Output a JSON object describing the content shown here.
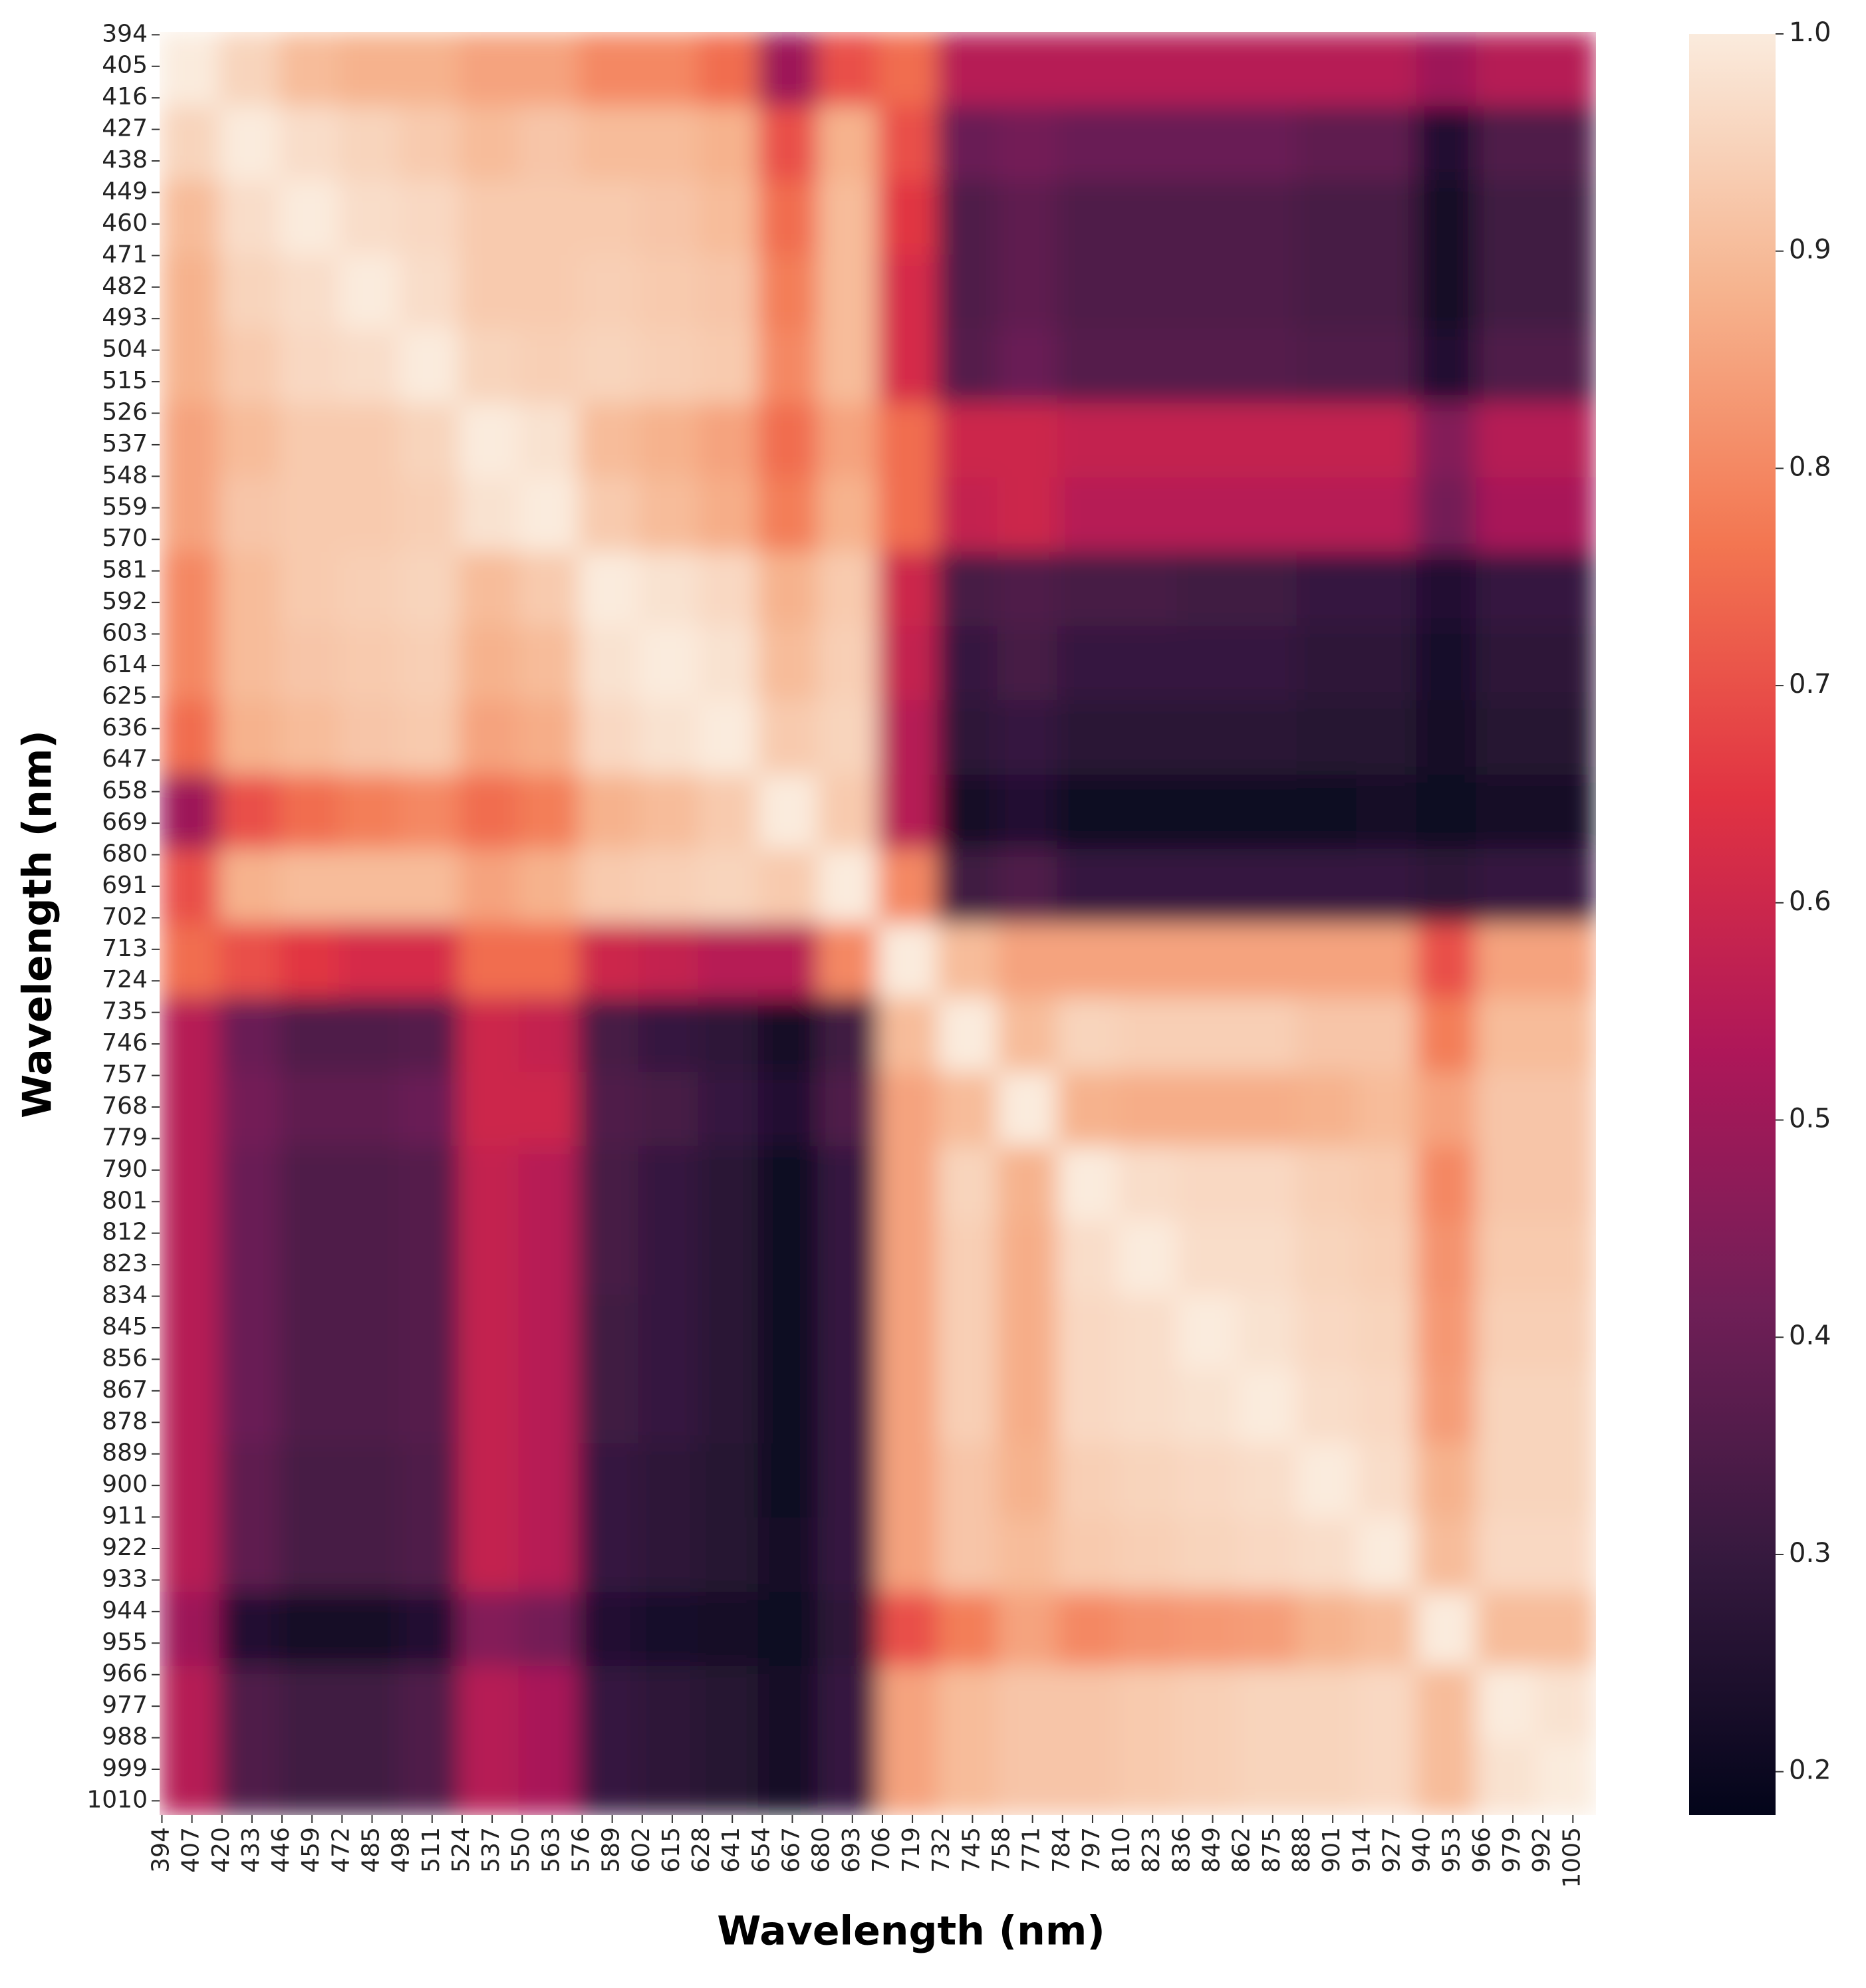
{
  "chart_data": {
    "type": "heatmap",
    "x_label": "Wavelength (nm)",
    "y_label": "Wavelength (nm)",
    "xlim": [
      393,
      1015
    ],
    "ylim": [
      1015,
      393
    ],
    "xticks": [
      394,
      407,
      420,
      433,
      446,
      459,
      472,
      485,
      498,
      511,
      524,
      537,
      550,
      563,
      576,
      589,
      602,
      615,
      628,
      641,
      654,
      667,
      680,
      693,
      706,
      719,
      732,
      745,
      758,
      771,
      784,
      797,
      810,
      823,
      836,
      849,
      862,
      875,
      888,
      901,
      914,
      927,
      940,
      953,
      966,
      979,
      992,
      1005
    ],
    "yticks": [
      394,
      405,
      416,
      427,
      438,
      449,
      460,
      471,
      482,
      493,
      504,
      515,
      526,
      537,
      548,
      559,
      570,
      581,
      592,
      603,
      614,
      625,
      636,
      647,
      658,
      669,
      680,
      691,
      702,
      713,
      724,
      735,
      746,
      757,
      768,
      779,
      790,
      801,
      812,
      823,
      834,
      845,
      856,
      867,
      878,
      889,
      900,
      911,
      922,
      933,
      944,
      955,
      966,
      977,
      988,
      999,
      1010
    ],
    "clim": [
      0.18,
      1.0
    ],
    "cticks": [
      0.2,
      0.3,
      0.4,
      0.5,
      0.6,
      0.7,
      0.8,
      0.9,
      {
        "value": 1,
        "label": "1.0"
      }
    ],
    "colormap": [
      "#03051a",
      "#35193e",
      "#701f57",
      "#ae1759",
      "#e13342",
      "#f37651",
      "#f6b48f",
      "#faebdd"
    ],
    "z": [
      [
        1.0,
        0.95,
        0.9,
        0.88,
        0.88,
        0.85,
        0.85,
        0.8,
        0.8,
        0.75,
        0.5,
        0.7,
        0.75,
        0.55,
        0.55,
        0.55,
        0.55,
        0.55,
        0.55,
        0.55,
        0.55,
        0.5,
        0.55,
        0.55
      ],
      [
        0.95,
        1.0,
        0.97,
        0.95,
        0.93,
        0.9,
        0.92,
        0.9,
        0.9,
        0.88,
        0.7,
        0.88,
        0.7,
        0.4,
        0.42,
        0.4,
        0.4,
        0.4,
        0.4,
        0.38,
        0.38,
        0.25,
        0.35,
        0.35
      ],
      [
        0.9,
        0.97,
        1.0,
        0.97,
        0.96,
        0.93,
        0.93,
        0.93,
        0.92,
        0.9,
        0.75,
        0.9,
        0.65,
        0.35,
        0.38,
        0.35,
        0.35,
        0.35,
        0.35,
        0.33,
        0.33,
        0.22,
        0.32,
        0.32
      ],
      [
        0.88,
        0.95,
        0.97,
        1.0,
        0.97,
        0.93,
        0.93,
        0.94,
        0.93,
        0.92,
        0.78,
        0.9,
        0.62,
        0.35,
        0.38,
        0.35,
        0.35,
        0.35,
        0.35,
        0.33,
        0.33,
        0.22,
        0.32,
        0.32
      ],
      [
        0.88,
        0.93,
        0.96,
        0.97,
        1.0,
        0.95,
        0.94,
        0.95,
        0.94,
        0.93,
        0.8,
        0.9,
        0.62,
        0.36,
        0.4,
        0.36,
        0.36,
        0.36,
        0.36,
        0.35,
        0.35,
        0.25,
        0.35,
        0.35
      ],
      [
        0.85,
        0.9,
        0.93,
        0.93,
        0.95,
        1.0,
        0.98,
        0.9,
        0.88,
        0.85,
        0.75,
        0.85,
        0.75,
        0.6,
        0.6,
        0.58,
        0.58,
        0.58,
        0.58,
        0.58,
        0.58,
        0.45,
        0.55,
        0.55
      ],
      [
        0.85,
        0.92,
        0.93,
        0.93,
        0.94,
        0.98,
        1.0,
        0.93,
        0.9,
        0.87,
        0.78,
        0.88,
        0.75,
        0.58,
        0.6,
        0.55,
        0.55,
        0.55,
        0.55,
        0.55,
        0.55,
        0.42,
        0.52,
        0.52
      ],
      [
        0.8,
        0.9,
        0.93,
        0.94,
        0.95,
        0.9,
        0.93,
        1.0,
        0.98,
        0.96,
        0.88,
        0.93,
        0.6,
        0.33,
        0.35,
        0.33,
        0.33,
        0.32,
        0.32,
        0.3,
        0.3,
        0.25,
        0.3,
        0.3
      ],
      [
        0.8,
        0.9,
        0.92,
        0.93,
        0.94,
        0.88,
        0.9,
        0.98,
        1.0,
        0.98,
        0.9,
        0.94,
        0.58,
        0.3,
        0.33,
        0.3,
        0.3,
        0.3,
        0.3,
        0.28,
        0.28,
        0.23,
        0.28,
        0.28
      ],
      [
        0.75,
        0.88,
        0.9,
        0.92,
        0.93,
        0.85,
        0.87,
        0.96,
        0.98,
        1.0,
        0.93,
        0.95,
        0.55,
        0.28,
        0.3,
        0.27,
        0.27,
        0.27,
        0.27,
        0.26,
        0.26,
        0.22,
        0.26,
        0.26
      ],
      [
        0.5,
        0.7,
        0.75,
        0.78,
        0.8,
        0.75,
        0.78,
        0.88,
        0.9,
        0.93,
        1.0,
        0.93,
        0.55,
        0.22,
        0.25,
        0.2,
        0.2,
        0.2,
        0.2,
        0.2,
        0.22,
        0.2,
        0.22,
        0.22
      ],
      [
        0.7,
        0.88,
        0.9,
        0.9,
        0.9,
        0.85,
        0.88,
        0.93,
        0.94,
        0.95,
        0.93,
        1.0,
        0.8,
        0.32,
        0.35,
        0.3,
        0.3,
        0.3,
        0.3,
        0.3,
        0.3,
        0.28,
        0.3,
        0.3
      ],
      [
        0.75,
        0.7,
        0.65,
        0.62,
        0.62,
        0.75,
        0.75,
        0.6,
        0.58,
        0.55,
        0.55,
        0.8,
        1.0,
        0.9,
        0.85,
        0.85,
        0.85,
        0.85,
        0.85,
        0.85,
        0.85,
        0.7,
        0.85,
        0.85
      ],
      [
        0.55,
        0.4,
        0.35,
        0.35,
        0.36,
        0.6,
        0.58,
        0.33,
        0.3,
        0.28,
        0.22,
        0.32,
        0.9,
        1.0,
        0.9,
        0.95,
        0.94,
        0.94,
        0.94,
        0.92,
        0.92,
        0.78,
        0.9,
        0.9
      ],
      [
        0.55,
        0.42,
        0.38,
        0.38,
        0.4,
        0.6,
        0.6,
        0.35,
        0.33,
        0.3,
        0.25,
        0.35,
        0.85,
        0.9,
        1.0,
        0.88,
        0.87,
        0.87,
        0.87,
        0.88,
        0.9,
        0.85,
        0.92,
        0.92
      ],
      [
        0.55,
        0.4,
        0.35,
        0.35,
        0.36,
        0.58,
        0.55,
        0.33,
        0.3,
        0.27,
        0.2,
        0.3,
        0.85,
        0.95,
        0.88,
        1.0,
        0.97,
        0.96,
        0.96,
        0.94,
        0.93,
        0.8,
        0.92,
        0.92
      ],
      [
        0.55,
        0.4,
        0.35,
        0.35,
        0.36,
        0.58,
        0.55,
        0.33,
        0.3,
        0.27,
        0.2,
        0.3,
        0.85,
        0.94,
        0.87,
        0.97,
        1.0,
        0.97,
        0.97,
        0.95,
        0.94,
        0.82,
        0.93,
        0.93
      ],
      [
        0.55,
        0.4,
        0.35,
        0.35,
        0.36,
        0.58,
        0.55,
        0.32,
        0.3,
        0.27,
        0.2,
        0.3,
        0.85,
        0.94,
        0.87,
        0.96,
        0.97,
        1.0,
        0.98,
        0.96,
        0.95,
        0.83,
        0.94,
        0.94
      ],
      [
        0.55,
        0.4,
        0.35,
        0.35,
        0.36,
        0.58,
        0.55,
        0.32,
        0.3,
        0.27,
        0.2,
        0.3,
        0.85,
        0.94,
        0.87,
        0.96,
        0.97,
        0.98,
        1.0,
        0.97,
        0.96,
        0.84,
        0.95,
        0.95
      ],
      [
        0.55,
        0.38,
        0.33,
        0.33,
        0.35,
        0.58,
        0.55,
        0.3,
        0.28,
        0.26,
        0.2,
        0.3,
        0.85,
        0.92,
        0.88,
        0.94,
        0.95,
        0.96,
        0.97,
        1.0,
        0.97,
        0.88,
        0.95,
        0.95
      ],
      [
        0.55,
        0.38,
        0.33,
        0.33,
        0.35,
        0.58,
        0.55,
        0.3,
        0.28,
        0.26,
        0.22,
        0.3,
        0.85,
        0.92,
        0.9,
        0.93,
        0.94,
        0.95,
        0.96,
        0.97,
        1.0,
        0.9,
        0.96,
        0.96
      ],
      [
        0.5,
        0.25,
        0.22,
        0.22,
        0.25,
        0.45,
        0.42,
        0.25,
        0.23,
        0.22,
        0.2,
        0.28,
        0.7,
        0.78,
        0.85,
        0.8,
        0.82,
        0.83,
        0.84,
        0.88,
        0.9,
        1.0,
        0.9,
        0.9
      ],
      [
        0.55,
        0.35,
        0.32,
        0.32,
        0.35,
        0.55,
        0.52,
        0.3,
        0.28,
        0.26,
        0.22,
        0.3,
        0.85,
        0.9,
        0.92,
        0.92,
        0.93,
        0.94,
        0.95,
        0.95,
        0.96,
        0.9,
        1.0,
        0.98
      ],
      [
        0.55,
        0.35,
        0.32,
        0.32,
        0.35,
        0.55,
        0.52,
        0.3,
        0.28,
        0.26,
        0.22,
        0.3,
        0.85,
        0.9,
        0.92,
        0.92,
        0.93,
        0.94,
        0.95,
        0.95,
        0.96,
        0.9,
        0.98,
        1.0
      ]
    ]
  }
}
